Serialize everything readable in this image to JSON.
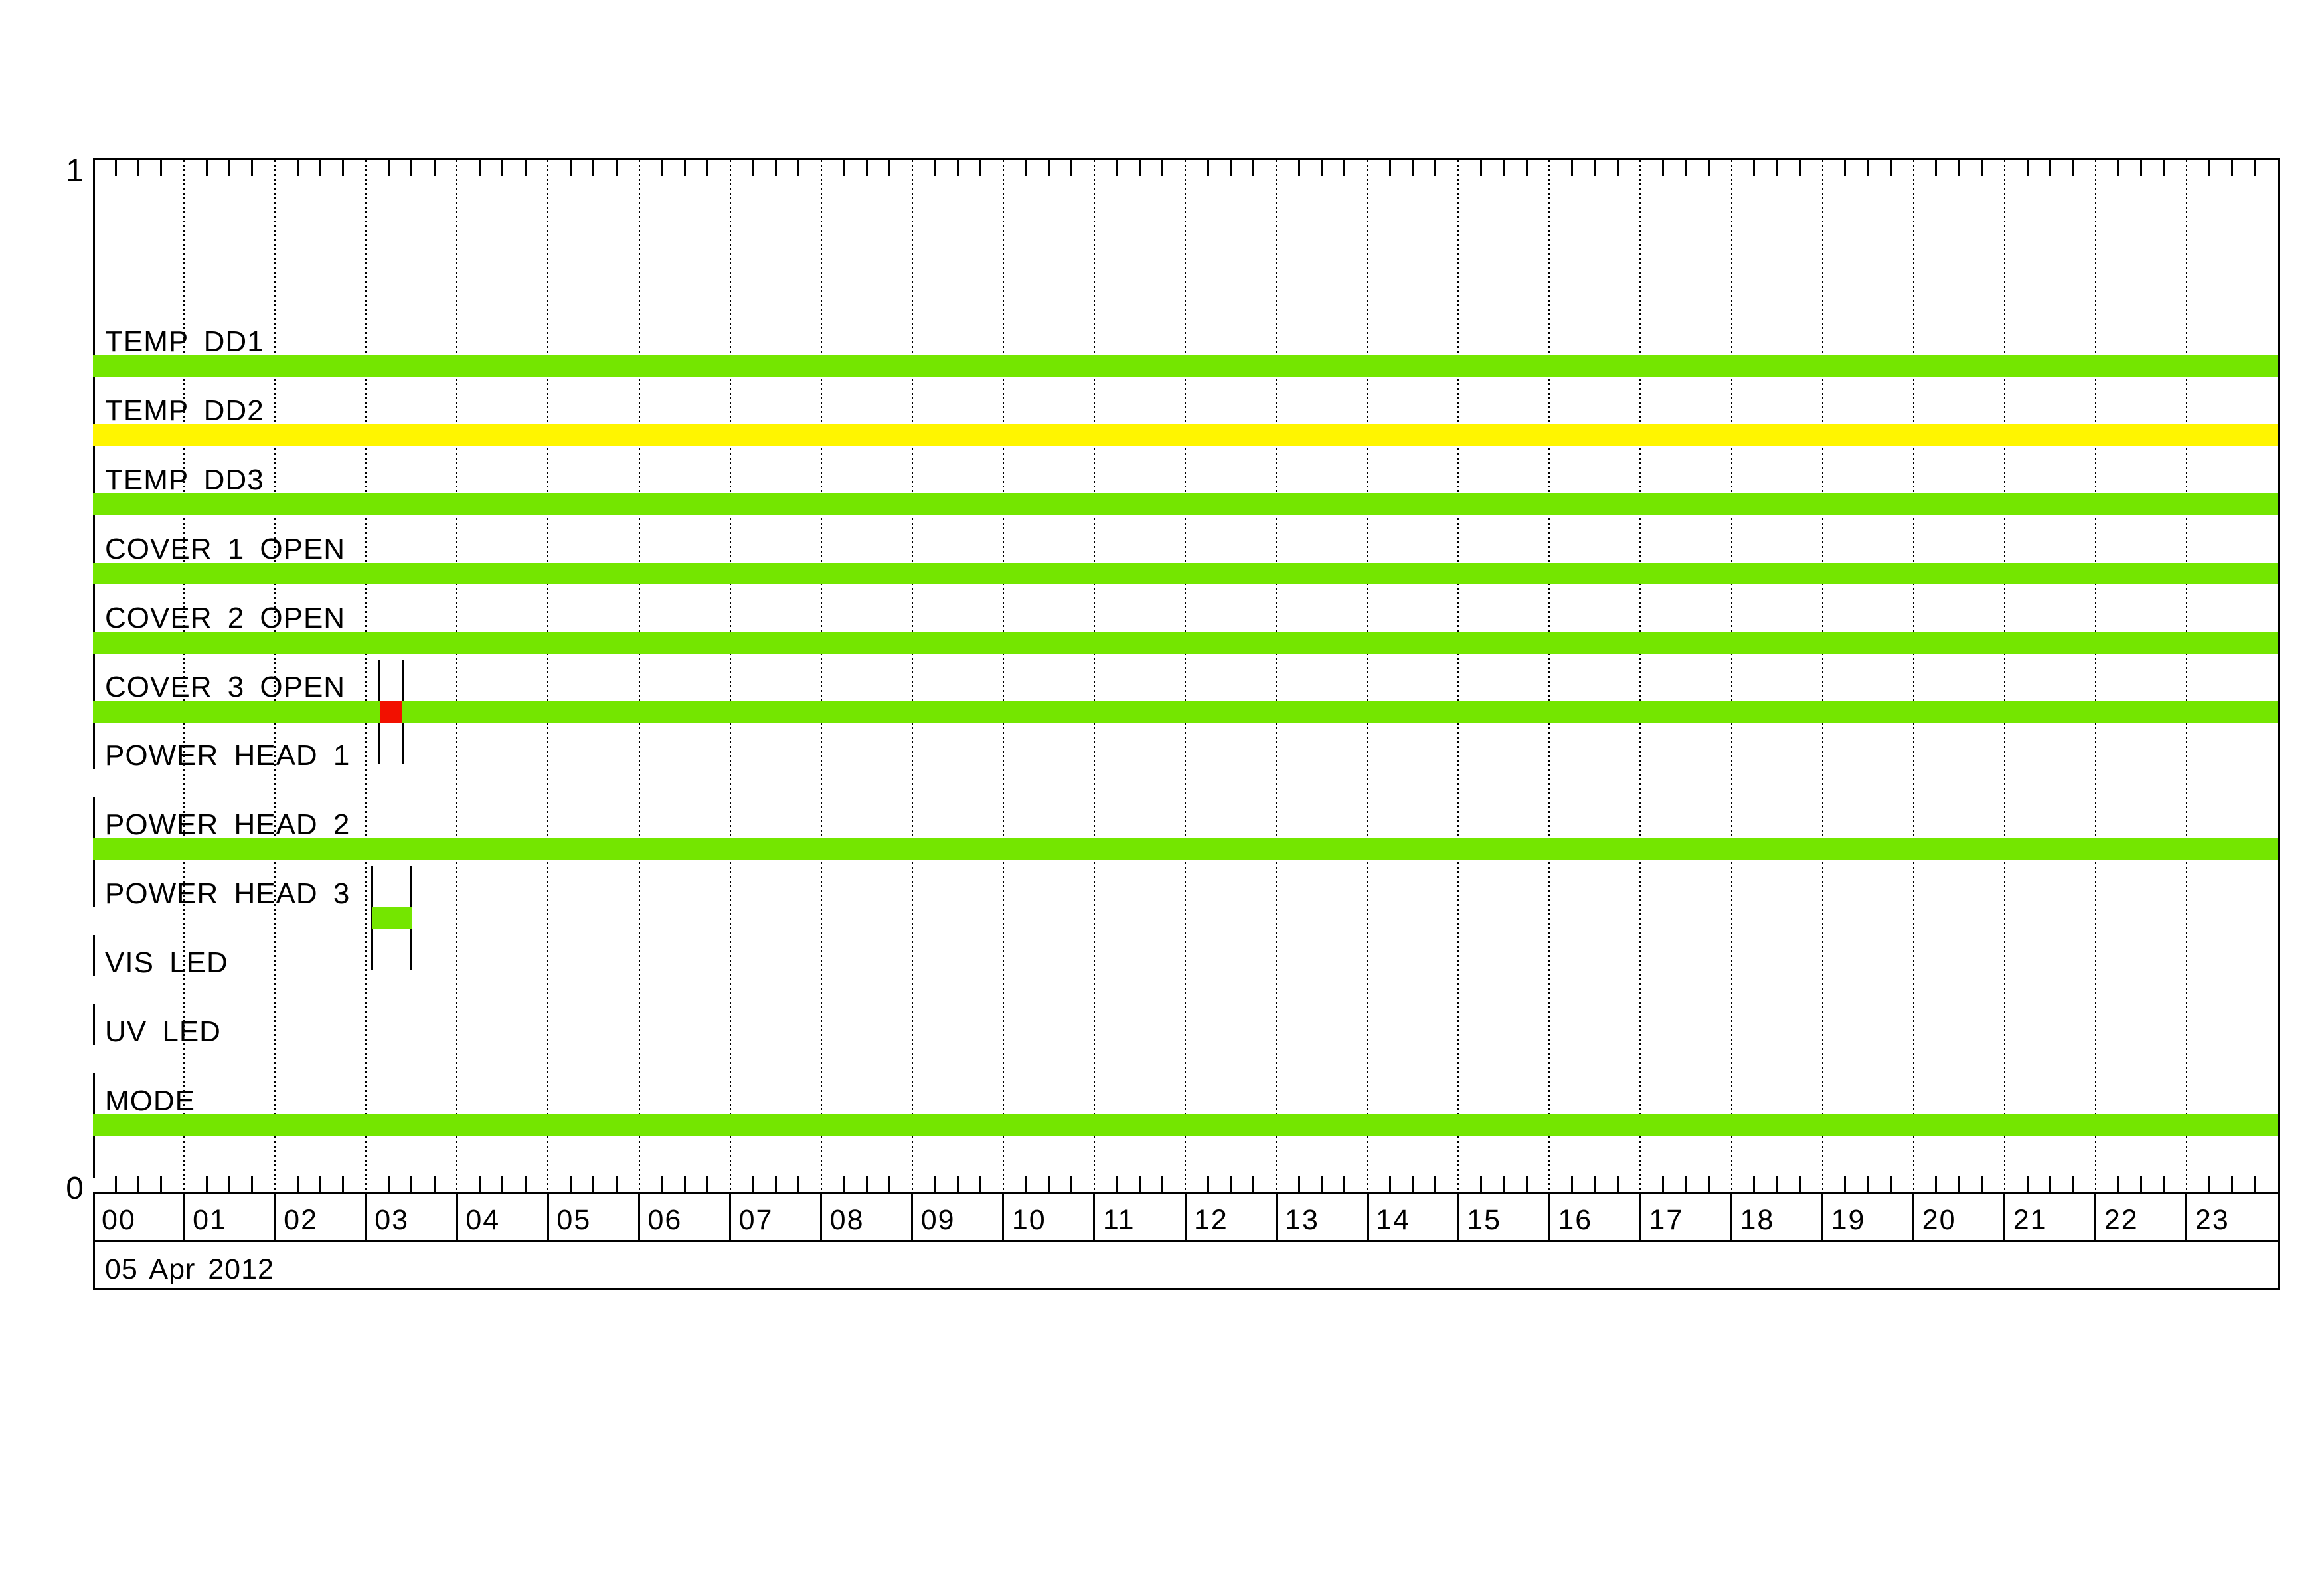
{
  "axis": {
    "y_top": "1",
    "y_bottom": "0"
  },
  "colors": {
    "green": "#74E600",
    "yellow": "#FFF500",
    "red": "#F21000",
    "line": "#000000",
    "background": "#FFFFFF"
  },
  "chart_data": {
    "type": "timeline",
    "title": "",
    "date": "05 Apr 2012",
    "x_axis": {
      "unit": "hours",
      "start": 0,
      "end": 24,
      "minor_tick_minutes": 15,
      "hour_labels": [
        "00",
        "01",
        "02",
        "03",
        "04",
        "05",
        "06",
        "07",
        "08",
        "09",
        "10",
        "11",
        "12",
        "13",
        "14",
        "15",
        "16",
        "17",
        "18",
        "19",
        "20",
        "21",
        "22",
        "23"
      ]
    },
    "y_axis": {
      "top_label": "1",
      "bottom_label": "0"
    },
    "legend_position": "none",
    "grid": "vertical-dotted-hourly",
    "rows": [
      {
        "label": "TEMP DD1",
        "segments": [
          {
            "start": "00:00",
            "end": "24:00",
            "color": "green"
          }
        ],
        "markers": []
      },
      {
        "label": "TEMP DD2",
        "segments": [
          {
            "start": "00:00",
            "end": "24:00",
            "color": "yellow"
          }
        ],
        "markers": []
      },
      {
        "label": "TEMP DD3",
        "segments": [
          {
            "start": "00:00",
            "end": "24:00",
            "color": "green"
          }
        ],
        "markers": []
      },
      {
        "label": "COVER 1 OPEN",
        "segments": [
          {
            "start": "00:00",
            "end": "24:00",
            "color": "green"
          }
        ],
        "markers": []
      },
      {
        "label": "COVER 2 OPEN",
        "segments": [
          {
            "start": "00:00",
            "end": "24:00",
            "color": "green"
          }
        ],
        "markers": []
      },
      {
        "label": "COVER 3 OPEN",
        "segments": [
          {
            "start": "00:00",
            "end": "24:00",
            "color": "green"
          },
          {
            "start": "03:09",
            "end": "03:24",
            "color": "red"
          }
        ],
        "markers": [
          "03:09",
          "03:24"
        ]
      },
      {
        "label": "POWER HEAD 1",
        "segments": [],
        "markers": []
      },
      {
        "label": "POWER HEAD 2",
        "segments": [
          {
            "start": "00:00",
            "end": "24:00",
            "color": "green"
          }
        ],
        "markers": []
      },
      {
        "label": "POWER HEAD 3",
        "segments": [
          {
            "start": "03:04",
            "end": "03:30",
            "color": "green"
          }
        ],
        "markers": [
          "03:04",
          "03:30"
        ]
      },
      {
        "label": "VIS LED",
        "segments": [],
        "markers": []
      },
      {
        "label": "UV LED",
        "segments": [],
        "markers": []
      },
      {
        "label": "MODE",
        "segments": [
          {
            "start": "00:00",
            "end": "24:00",
            "color": "green"
          }
        ],
        "markers": []
      }
    ]
  }
}
